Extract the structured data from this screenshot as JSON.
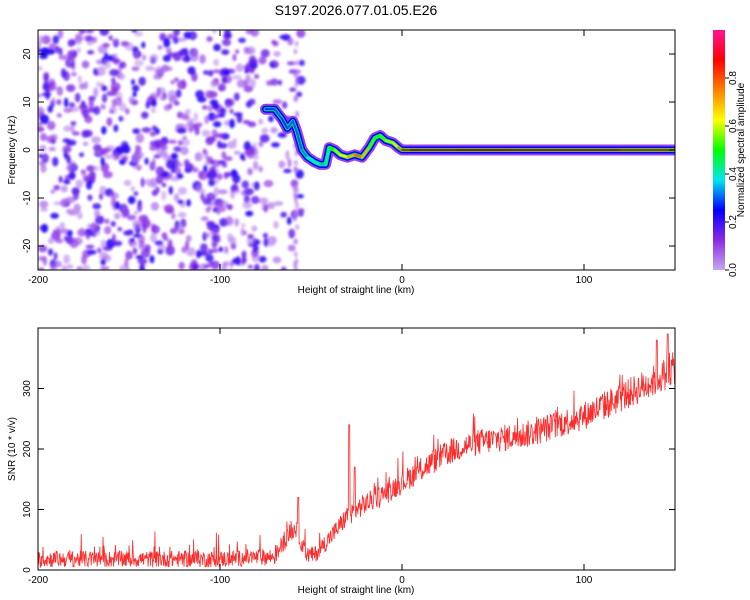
{
  "title": "S197.2026.077.01.05.E26",
  "chart_data": [
    {
      "type": "heatmap",
      "name": "spectrogram",
      "xlabel": "Height of straight line (km)",
      "ylabel": "Frequency (Hz)",
      "xlim": [
        -200,
        150
      ],
      "ylim": [
        -25,
        25
      ],
      "xticks": [
        -200,
        -100,
        0,
        100
      ],
      "xtick_labels": [
        "-200",
        "-100",
        "0",
        "100"
      ],
      "yticks": [
        -20,
        -10,
        0,
        10,
        20
      ],
      "ytick_labels": [
        "-20",
        "-10",
        "0",
        "10",
        "20"
      ],
      "colorbar": {
        "label": "Normalized spectral amplitude",
        "range": [
          0,
          1
        ],
        "ticks": [
          0.0,
          0.2,
          0.4,
          0.6,
          0.8
        ],
        "tick_labels": [
          "0.0",
          "0.2",
          "0.4",
          "0.6",
          "0.8"
        ],
        "colors": [
          "#c8a6f2",
          "#8a2be2",
          "#0000ff",
          "#00e5ee",
          "#00ff00",
          "#ffff00",
          "#ff7f00",
          "#ff0000",
          "#ff1493"
        ]
      },
      "track": {
        "x": [
          -75,
          -70,
          -66,
          -63,
          -60,
          -58,
          -55,
          -52,
          -48,
          -45,
          -42,
          -40,
          -37,
          -34,
          -30,
          -26,
          -22,
          -18,
          -15,
          -12,
          -9,
          -5,
          -2,
          0,
          5,
          10,
          30,
          60,
          90,
          120,
          150
        ],
        "freq": [
          8.5,
          8.5,
          6.5,
          4.5,
          6,
          4,
          0,
          -1.5,
          -2.5,
          -3,
          -3,
          0.5,
          0,
          -1,
          -1.5,
          -1,
          -1.5,
          0.5,
          2.5,
          3,
          2,
          1.5,
          0.5,
          0,
          0,
          0,
          0,
          0,
          0,
          0,
          0
        ],
        "amplitude": [
          0.2,
          0.35,
          0.25,
          0.3,
          0.3,
          0.3,
          0.3,
          0.35,
          0.4,
          0.35,
          0.35,
          0.45,
          0.55,
          0.6,
          0.65,
          0.75,
          0.8,
          0.6,
          0.45,
          0.5,
          0.55,
          0.6,
          0.7,
          0.8,
          0.85,
          0.95,
          0.9,
          0.9,
          0.95,
          0.9,
          0.75
        ]
      },
      "noise_region": {
        "x_from": -200,
        "x_to": -55,
        "amplitude_range": [
          0.0,
          0.2
        ]
      }
    },
    {
      "type": "line",
      "name": "snr",
      "xlabel": "Height of straight line (km)",
      "ylabel": "SNR (10 * v/v)",
      "xlim": [
        -200,
        150
      ],
      "ylim": [
        0,
        400
      ],
      "xticks": [
        -200,
        -100,
        0,
        100
      ],
      "xtick_labels": [
        "-200",
        "-100",
        "0",
        "100"
      ],
      "yticks": [
        0,
        100,
        200,
        300
      ],
      "ytick_labels": [
        "0",
        "100",
        "200",
        "300"
      ],
      "color": "#ff2a2a",
      "trend": {
        "x": [
          -200,
          -150,
          -100,
          -70,
          -62,
          -58,
          -53,
          -48,
          -42,
          -35,
          -30,
          -25,
          -20,
          -10,
          0,
          10,
          20,
          30,
          40,
          50,
          60,
          70,
          80,
          90,
          100,
          110,
          120,
          130,
          140,
          150
        ],
        "y": [
          18,
          18,
          18,
          22,
          60,
          70,
          25,
          25,
          45,
          70,
          90,
          100,
          110,
          125,
          145,
          165,
          185,
          200,
          210,
          215,
          220,
          225,
          235,
          245,
          255,
          270,
          285,
          300,
          315,
          335
        ]
      },
      "spikes": {
        "x": [
          -57,
          -29,
          -26,
          140,
          146
        ],
        "y": [
          120,
          240,
          170,
          380,
          390
        ]
      },
      "noise_amplitude": 20
    }
  ]
}
